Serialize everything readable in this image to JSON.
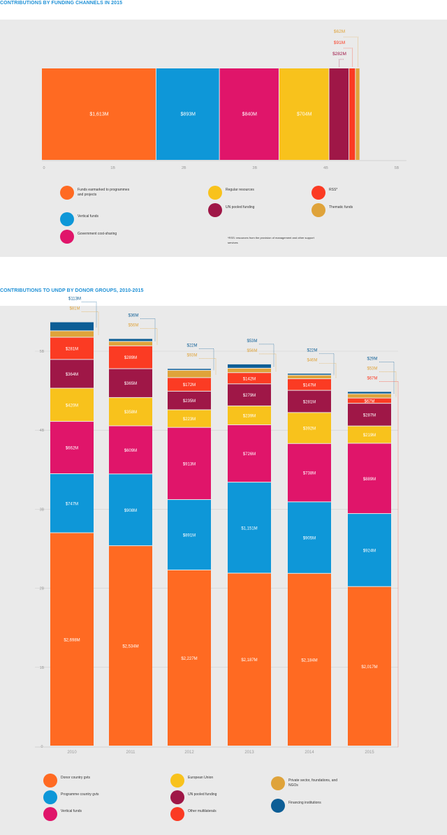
{
  "colors": {
    "orange": "#ff6a22",
    "blue": "#0e97d8",
    "magenta": "#e0156a",
    "yellow": "#f8c21c",
    "maroon": "#9f1747",
    "red": "#fb3b23",
    "gold": "#dfa33a",
    "navy": "#0d5e96",
    "panel": "#eaeaea",
    "title": "#1e90d6"
  },
  "section1": {
    "title": "CONTRIBUTIONS BY FUNDING CHANNELS IN 2015",
    "note": "*RSS: resources from the provision of management and other support services",
    "legend": [
      {
        "label": "Funds earmarked to programmes and projects",
        "color": "#ff6a22"
      },
      {
        "label": "Vertical funds",
        "color": "#0e97d8"
      },
      {
        "label": "Government cost-sharing",
        "color": "#e0156a"
      },
      {
        "label": "Regular resources",
        "color": "#f8c21c"
      },
      {
        "label": "UN pooled funding",
        "color": "#9f1747"
      },
      {
        "label": "RSS*",
        "color": "#fb3b23"
      },
      {
        "label": "Thematic funds",
        "color": "#dfa33a"
      }
    ]
  },
  "section2": {
    "title": "CONTRIBUTIONS TO UNDP BY DONOR GROUPS, 2010-2015",
    "legend": [
      {
        "label": "Donor country gvts",
        "color": "#ff6a22"
      },
      {
        "label": "Programme country gvts",
        "color": "#0e97d8"
      },
      {
        "label": "Vertical funds",
        "color": "#e0156a"
      },
      {
        "label": "European Union",
        "color": "#f8c21c"
      },
      {
        "label": "UN pooled funding",
        "color": "#9f1747"
      },
      {
        "label": "Other multilaterals",
        "color": "#fb3b23"
      },
      {
        "label": "Private sector, foundations, and NGOs",
        "color": "#dfa33a"
      },
      {
        "label": "Financing institutions",
        "color": "#0d5e96"
      }
    ]
  },
  "chart_data": [
    {
      "type": "bar",
      "orientation": "horizontal",
      "stacked": true,
      "title": "CONTRIBUTIONS BY FUNDING CHANNELS IN 2015",
      "xlim": [
        0,
        5000
      ],
      "x_tick_labels": [
        "0",
        "1B",
        "2B",
        "3B",
        "4B",
        "5B"
      ],
      "x_ticks": [
        0,
        1000,
        2000,
        3000,
        4000,
        5000
      ],
      "series": [
        {
          "name": "Funds earmarked to programmes and projects",
          "value": 1613,
          "label": "$1,613M",
          "color": "#ff6a22"
        },
        {
          "name": "Vertical funds",
          "value": 893,
          "label": "$893M",
          "color": "#0e97d8"
        },
        {
          "name": "Government cost-sharing",
          "value": 840,
          "label": "$840M",
          "color": "#e0156a"
        },
        {
          "name": "Regular resources",
          "value": 704,
          "label": "$704M",
          "color": "#f8c21c"
        },
        {
          "name": "UN pooled funding",
          "value": 282,
          "label": "$282M",
          "color": "#9f1747"
        },
        {
          "name": "RSS*",
          "value": 91,
          "label": "$91M",
          "color": "#fb3b23"
        },
        {
          "name": "Thematic funds",
          "value": 62,
          "label": "$62M",
          "color": "#dfa33a"
        }
      ]
    },
    {
      "type": "bar",
      "stacked": true,
      "title": "CONTRIBUTIONS TO UNDP BY DONOR GROUPS, 2010-2015",
      "categories": [
        "2010",
        "2011",
        "2012",
        "2013",
        "2014",
        "2015"
      ],
      "ylim": [
        0,
        5500
      ],
      "y_ticks": [
        0,
        1000,
        2000,
        3000,
        4000,
        5000
      ],
      "y_tick_labels": [
        "0",
        "1B",
        "2B",
        "3B",
        "4B",
        "5B"
      ],
      "series": [
        {
          "name": "Donor country gvts",
          "color": "#ff6a22",
          "values": [
            2698,
            2534,
            2227,
            2187,
            2184,
            2017
          ],
          "labels": [
            "$2,698M",
            "$2,534M",
            "$2,227M",
            "$2,187M",
            "$2,184M",
            "$2,017M"
          ]
        },
        {
          "name": "Programme country gvts",
          "color": "#0e97d8",
          "values": [
            747,
            908,
            891,
            1151,
            905,
            924
          ],
          "labels": [
            "$747M",
            "$908M",
            "$891M",
            "$1,151M",
            "$905M",
            "$924M"
          ]
        },
        {
          "name": "Vertical funds",
          "color": "#e0156a",
          "values": [
            662,
            609,
            913,
            726,
            738,
            889
          ],
          "labels": [
            "$662M",
            "$609M",
            "$913M",
            "$726M",
            "$738M",
            "$889M"
          ]
        },
        {
          "name": "European Union",
          "color": "#f8c21c",
          "values": [
            420,
            358,
            223,
            239,
            392,
            219
          ],
          "labels": [
            "$420M",
            "$358M",
            "$223M",
            "$239M",
            "$392M",
            "$219M"
          ]
        },
        {
          "name": "UN pooled funding",
          "color": "#9f1747",
          "values": [
            364,
            365,
            235,
            279,
            281,
            287
          ],
          "labels": [
            "$364M",
            "$365M",
            "$235M",
            "$279M",
            "$281M",
            "$287M"
          ]
        },
        {
          "name": "Other multilaterals",
          "color": "#fb3b23",
          "values": [
            281,
            289,
            172,
            142,
            147,
            67
          ],
          "labels": [
            "$281M",
            "$289M",
            "$172M",
            "$142M",
            "$147M",
            "$67M"
          ]
        },
        {
          "name": "Private sector, foundations, and NGOs",
          "color": "#dfa33a",
          "values": [
            81,
            56,
            93,
            56,
            46,
            53
          ],
          "labels": [
            "$81M",
            "$56M",
            "$93M",
            "$56M",
            "$46M",
            "$53M"
          ]
        },
        {
          "name": "Financing institutions",
          "color": "#0d5e96",
          "values": [
            113,
            36,
            22,
            53,
            22,
            29
          ],
          "labels": [
            "$113M",
            "$36M",
            "$22M",
            "$53M",
            "$22M",
            "$29M"
          ]
        }
      ]
    }
  ]
}
